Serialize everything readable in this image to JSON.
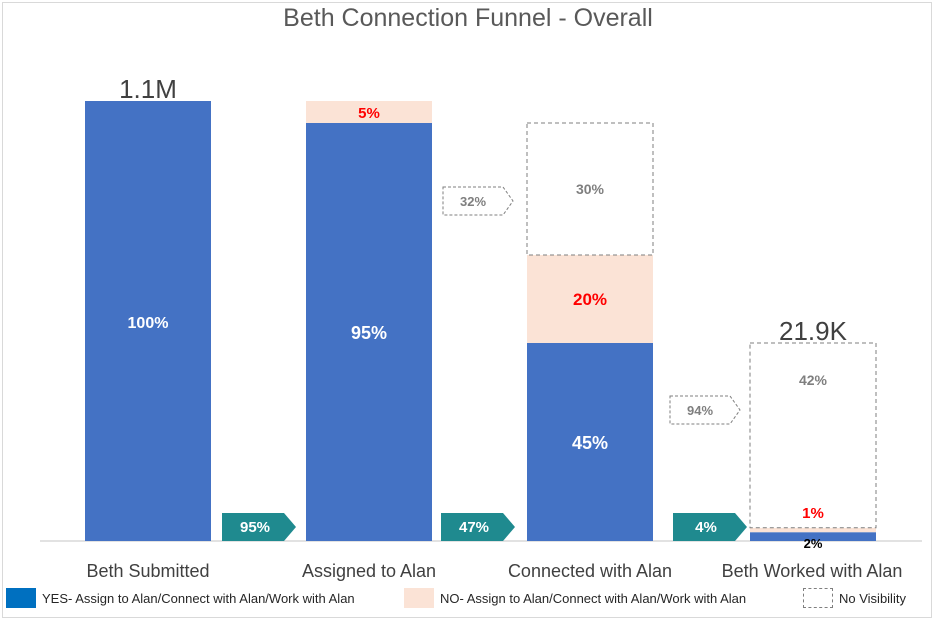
{
  "chart_data": {
    "type": "bar",
    "title": "Beth Connection Funnel - Overall",
    "categories": [
      "Beth Submitted",
      "Assigned to Alan",
      "Connected with Alan",
      "Beth Worked with Alan"
    ],
    "totals": [
      "1.1M",
      "",
      "",
      "21.9K"
    ],
    "series": [
      {
        "name": "YES- Assign to Alan/Connect with Alan/Work with  Alan",
        "values": [
          100,
          95,
          45,
          2
        ],
        "labels": [
          "100%",
          "95%",
          "45%",
          "2%"
        ],
        "color": "#4472c4"
      },
      {
        "name": "NO- Assign to Alan/Connect with Alan/Work with  Alan",
        "values": [
          0,
          5,
          20,
          1
        ],
        "labels": [
          "",
          "5%",
          "20%",
          "1%"
        ],
        "color": "#fbe3d6"
      },
      {
        "name": "No Visibility",
        "values": [
          0,
          0,
          30,
          42
        ],
        "labels": [
          "",
          "",
          "30%",
          "42%"
        ],
        "color": "#ffffff"
      }
    ],
    "conversion_arrows": [
      "95%",
      "47%",
      "4%"
    ],
    "visibility_callouts": [
      "32%",
      "94%"
    ],
    "ylim": [
      0,
      100
    ],
    "grid": false,
    "legend_position": "bottom"
  },
  "colors": {
    "yes": "#4472c4",
    "no": "#fbe3d6",
    "arrow": "#1f8a8f",
    "no_label": "#ff0000",
    "novis_label": "#7f7f7f"
  },
  "legend": [
    {
      "label": "YES- Assign to Alan/Connect with Alan/Work with  Alan",
      "swatch": "solid-blue"
    },
    {
      "label": "NO- Assign to Alan/Connect with Alan/Work with  Alan",
      "swatch": "solid-peach"
    },
    {
      "label": "No Visibility",
      "swatch": "dashed-box"
    }
  ]
}
